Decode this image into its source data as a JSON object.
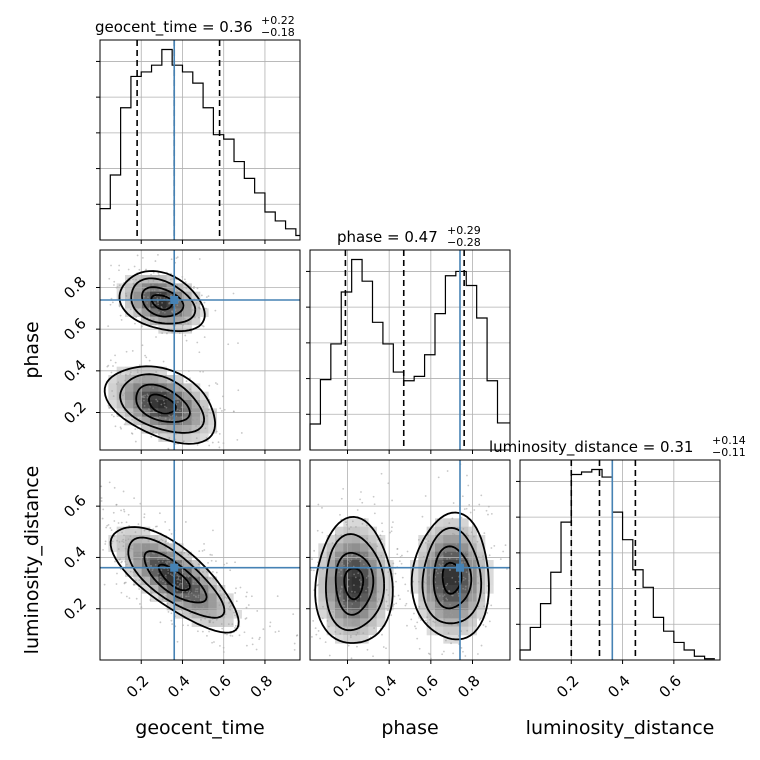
{
  "chart_data": {
    "type": "corner",
    "parameters": [
      "geocent_time",
      "phase",
      "luminosity_distance"
    ],
    "axis_ranges": {
      "geocent_time": [
        0.0,
        0.97
      ],
      "phase": [
        0.02,
        0.98
      ],
      "luminosity_distance": [
        0.0,
        0.78
      ]
    },
    "ticks": {
      "geocent_time": [
        "0.2",
        "0.4",
        "0.6",
        "0.8"
      ],
      "phase": [
        "0.2",
        "0.4",
        "0.6",
        "0.8"
      ],
      "luminosity_distance": [
        "0.2",
        "0.4",
        "0.6"
      ]
    },
    "tick_values": {
      "geocent_time": [
        0.2,
        0.4,
        0.6,
        0.8
      ],
      "phase": [
        0.2,
        0.4,
        0.6,
        0.8
      ],
      "luminosity_distance": [
        0.2,
        0.4,
        0.6
      ]
    },
    "truths": {
      "geocent_time": 0.36,
      "phase": 0.74,
      "luminosity_distance": 0.36
    },
    "quantiles": {
      "geocent_time": [
        0.18,
        0.36,
        0.58
      ],
      "phase": [
        0.19,
        0.47,
        0.76
      ],
      "luminosity_distance": [
        0.2,
        0.31,
        0.45
      ]
    },
    "titles": [
      {
        "param": "geocent_time",
        "text": "geocent_time = 0.36",
        "plus": "+0.22",
        "minus": "−0.18"
      },
      {
        "param": "phase",
        "text": "phase = 0.47",
        "plus": "+0.29",
        "minus": "−0.28"
      },
      {
        "param": "luminosity_distance",
        "text": "luminosity_distance = 0.31",
        "plus": "+0.14",
        "minus": "−0.11"
      }
    ],
    "histograms": {
      "geocent_time": {
        "edges": [
          0.0,
          0.05,
          0.1,
          0.15,
          0.2,
          0.25,
          0.3,
          0.35,
          0.4,
          0.45,
          0.5,
          0.55,
          0.6,
          0.65,
          0.7,
          0.75,
          0.8,
          0.85,
          0.9,
          0.95,
          0.97
        ],
        "counts": [
          28,
          58,
          118,
          146,
          150,
          156,
          170,
          156,
          150,
          140,
          118,
          94,
          90,
          70,
          55,
          42,
          25,
          17,
          10,
          4
        ]
      },
      "phase": {
        "edges": [
          0.02,
          0.07,
          0.12,
          0.17,
          0.22,
          0.27,
          0.32,
          0.37,
          0.42,
          0.47,
          0.52,
          0.57,
          0.62,
          0.67,
          0.72,
          0.77,
          0.82,
          0.87,
          0.92,
          0.98
        ],
        "counts": [
          24,
          65,
          98,
          146,
          176,
          156,
          118,
          98,
          72,
          64,
          68,
          88,
          126,
          161,
          165,
          152,
          122,
          64,
          25
        ]
      },
      "luminosity_distance": {
        "edges": [
          0.0,
          0.04,
          0.08,
          0.12,
          0.16,
          0.2,
          0.24,
          0.28,
          0.32,
          0.36,
          0.4,
          0.44,
          0.48,
          0.52,
          0.56,
          0.6,
          0.64,
          0.68,
          0.72,
          0.76
        ],
        "counts": [
          8,
          26,
          45,
          70,
          110,
          148,
          150,
          152,
          146,
          118,
          96,
          72,
          58,
          34,
          23,
          14,
          8,
          3,
          1
        ]
      }
    },
    "posterior_modes": {
      "phase_vs_geocent_time": [
        {
          "x": 0.3,
          "y": 0.73
        },
        {
          "x": 0.3,
          "y": 0.24
        }
      ],
      "luminosity_distance_vs_geocent_time": [
        {
          "x": 0.36,
          "y": 0.32
        }
      ],
      "luminosity_distance_vs_phase": [
        {
          "x": 0.23,
          "y": 0.3
        },
        {
          "x": 0.7,
          "y": 0.32
        }
      ]
    },
    "colors": {
      "truth": "#4682b4",
      "hist": "#000000",
      "contour": "#000000"
    }
  }
}
